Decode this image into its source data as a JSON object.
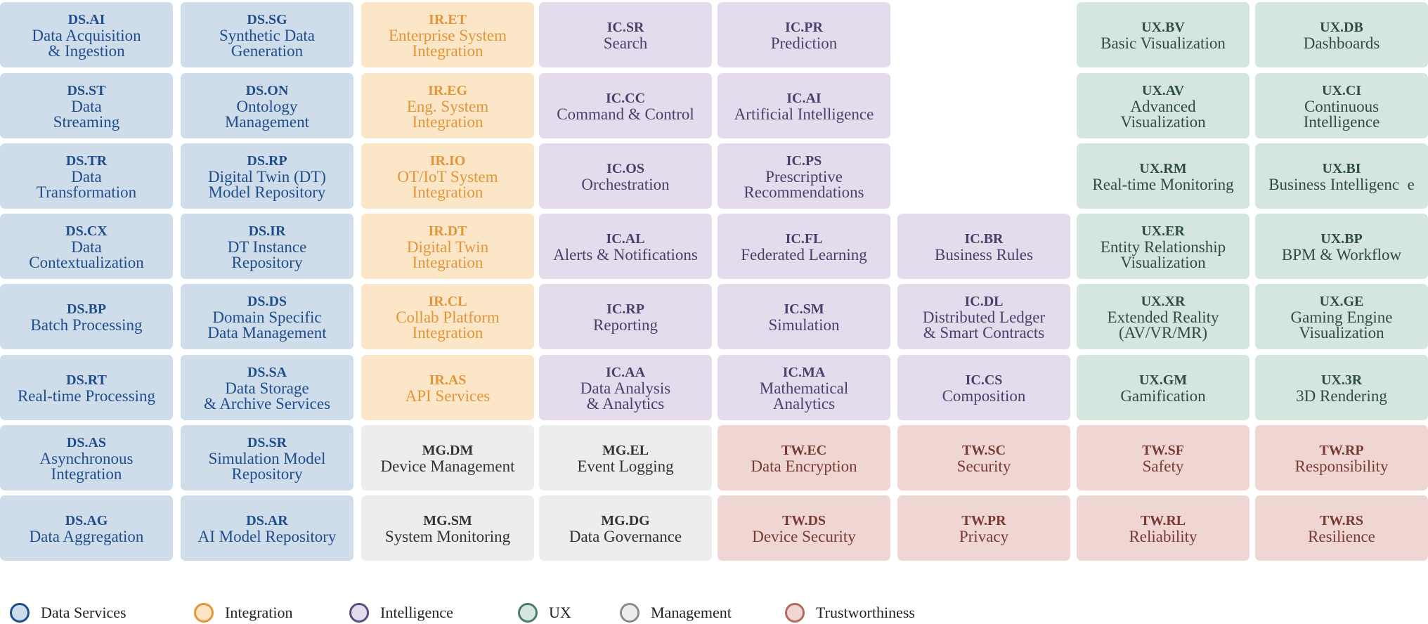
{
  "categories": {
    "ds": {
      "label": "Data Services",
      "fill": "#cfdcea",
      "stroke": "#1f4e8c",
      "text": "#1f4e8c"
    },
    "ir": {
      "label": "Integration",
      "fill": "#fbe6c7",
      "stroke": "#e3953a",
      "text": "#e3953a"
    },
    "ic": {
      "label": "Intelligence",
      "fill": "#e4dcec",
      "stroke": "#5a4d80",
      "text": "#4a3f6b"
    },
    "ux": {
      "label": "UX",
      "fill": "#d5e6df",
      "stroke": "#4f7b6c",
      "text": "#2e4d44"
    },
    "mg": {
      "label": "Management",
      "fill": "#ededed",
      "stroke": "#8c8c8c",
      "text": "#333333"
    },
    "tw": {
      "label": "Trustworthiness",
      "fill": "#f0d6d3",
      "stroke": "#b56a62",
      "text": "#7a3a34"
    }
  },
  "legend": [
    "ds",
    "ir",
    "ic",
    "ux",
    "mg",
    "tw"
  ],
  "cells": [
    {
      "code": "DS.AI",
      "name": "Data Acquisition\n& Ingestion",
      "cat": "ds",
      "col": 0,
      "row": 0
    },
    {
      "code": "DS.ST",
      "name": "Data\nStreaming",
      "cat": "ds",
      "col": 0,
      "row": 1
    },
    {
      "code": "DS.TR",
      "name": "Data\nTransformation",
      "cat": "ds",
      "col": 0,
      "row": 2
    },
    {
      "code": "DS.CX",
      "name": "Data\nContextualization",
      "cat": "ds",
      "col": 0,
      "row": 3
    },
    {
      "code": "DS.BP",
      "name": "Batch Processing",
      "cat": "ds",
      "col": 0,
      "row": 4
    },
    {
      "code": "DS.RT",
      "name": "Real-time Processing",
      "cat": "ds",
      "col": 0,
      "row": 5
    },
    {
      "code": "DS.AS",
      "name": "Asynchronous\nIntegration",
      "cat": "ds",
      "col": 0,
      "row": 6
    },
    {
      "code": "DS.AG",
      "name": "Data Aggregation",
      "cat": "ds",
      "col": 0,
      "row": 7
    },
    {
      "code": "DS.SG",
      "name": "Synthetic Data\nGeneration",
      "cat": "ds",
      "col": 1,
      "row": 0
    },
    {
      "code": "DS.ON",
      "name": "Ontology\nManagement",
      "cat": "ds",
      "col": 1,
      "row": 1
    },
    {
      "code": "DS.RP",
      "name": "Digital Twin (DT)\nModel Repository",
      "cat": "ds",
      "col": 1,
      "row": 2
    },
    {
      "code": "DS.IR",
      "name": "DT Instance\nRepository",
      "cat": "ds",
      "col": 1,
      "row": 3
    },
    {
      "code": "DS.DS",
      "name": "Domain Specific\nData Management",
      "cat": "ds",
      "col": 1,
      "row": 4
    },
    {
      "code": "DS.SA",
      "name": "Data Storage\n& Archive Services",
      "cat": "ds",
      "col": 1,
      "row": 5
    },
    {
      "code": "DS.SR",
      "name": "Simulation Model\nRepository",
      "cat": "ds",
      "col": 1,
      "row": 6
    },
    {
      "code": "DS.AR",
      "name": "AI Model Repository",
      "cat": "ds",
      "col": 1,
      "row": 7
    },
    {
      "code": "IR.ET",
      "name": "Enterprise System\nIntegration",
      "cat": "ir",
      "col": 2,
      "row": 0
    },
    {
      "code": "IR.EG",
      "name": "Eng. System\nIntegration",
      "cat": "ir",
      "col": 2,
      "row": 1
    },
    {
      "code": "IR.IO",
      "name": "OT/IoT System\nIntegration",
      "cat": "ir",
      "col": 2,
      "row": 2
    },
    {
      "code": "IR.DT",
      "name": "Digital Twin\nIntegration",
      "cat": "ir",
      "col": 2,
      "row": 3
    },
    {
      "code": "IR.CL",
      "name": "Collab Platform\nIntegration",
      "cat": "ir",
      "col": 2,
      "row": 4
    },
    {
      "code": "IR.AS",
      "name": "API Services",
      "cat": "ir",
      "col": 2,
      "row": 5
    },
    {
      "code": "MG.DM",
      "name": "Device Management",
      "cat": "mg",
      "col": 2,
      "row": 6
    },
    {
      "code": "MG.SM",
      "name": "System Monitoring",
      "cat": "mg",
      "col": 2,
      "row": 7
    },
    {
      "code": "IC.SR",
      "name": "Search",
      "cat": "ic",
      "col": 3,
      "row": 0
    },
    {
      "code": "IC.CC",
      "name": "Command & Control",
      "cat": "ic",
      "col": 3,
      "row": 1
    },
    {
      "code": "IC.OS",
      "name": "Orchestration",
      "cat": "ic",
      "col": 3,
      "row": 2
    },
    {
      "code": "IC.AL",
      "name": "Alerts & Notifications",
      "cat": "ic",
      "col": 3,
      "row": 3
    },
    {
      "code": "IC.RP",
      "name": "Reporting",
      "cat": "ic",
      "col": 3,
      "row": 4
    },
    {
      "code": "IC.AA",
      "name": "Data Analysis\n& Analytics",
      "cat": "ic",
      "col": 3,
      "row": 5
    },
    {
      "code": "MG.EL",
      "name": "Event Logging",
      "cat": "mg",
      "col": 3,
      "row": 6
    },
    {
      "code": "MG.DG",
      "name": "Data Governance",
      "cat": "mg",
      "col": 3,
      "row": 7
    },
    {
      "code": "IC.PR",
      "name": "Prediction",
      "cat": "ic",
      "col": 4,
      "row": 0
    },
    {
      "code": "IC.AI",
      "name": "Artificial Intelligence",
      "cat": "ic",
      "col": 4,
      "row": 1
    },
    {
      "code": "IC.PS",
      "name": "Prescriptive\nRecommendations",
      "cat": "ic",
      "col": 4,
      "row": 2
    },
    {
      "code": "IC.FL",
      "name": "Federated Learning",
      "cat": "ic",
      "col": 4,
      "row": 3
    },
    {
      "code": "IC.SM",
      "name": "Simulation",
      "cat": "ic",
      "col": 4,
      "row": 4
    },
    {
      "code": "IC.MA",
      "name": "Mathematical\nAnalytics",
      "cat": "ic",
      "col": 4,
      "row": 5
    },
    {
      "code": "TW.EC",
      "name": "Data Encryption",
      "cat": "tw",
      "col": 4,
      "row": 6
    },
    {
      "code": "TW.DS",
      "name": "Device Security",
      "cat": "tw",
      "col": 4,
      "row": 7
    },
    {
      "code": "IC.BR",
      "name": "Business Rules",
      "cat": "ic",
      "col": 5,
      "row": 3
    },
    {
      "code": "IC.DL",
      "name": "Distributed Ledger\n& Smart Contracts",
      "cat": "ic",
      "col": 5,
      "row": 4
    },
    {
      "code": "IC.CS",
      "name": "Composition",
      "cat": "ic",
      "col": 5,
      "row": 5
    },
    {
      "code": "TW.SC",
      "name": "Security",
      "cat": "tw",
      "col": 5,
      "row": 6
    },
    {
      "code": "TW.PR",
      "name": "Privacy",
      "cat": "tw",
      "col": 5,
      "row": 7
    },
    {
      "code": "UX.BV",
      "name": "Basic Visualization",
      "cat": "ux",
      "col": 6,
      "row": 0
    },
    {
      "code": "UX.AV",
      "name": "Advanced\nVisualization",
      "cat": "ux",
      "col": 6,
      "row": 1
    },
    {
      "code": "UX.RM",
      "name": "Real-time Monitoring",
      "cat": "ux",
      "col": 6,
      "row": 2
    },
    {
      "code": "UX.ER",
      "name": "Entity Relationship\nVisualization",
      "cat": "ux",
      "col": 6,
      "row": 3
    },
    {
      "code": "UX.XR",
      "name": "Extended Reality\n(AV/VR/MR)",
      "cat": "ux",
      "col": 6,
      "row": 4
    },
    {
      "code": "UX.GM",
      "name": "Gamification",
      "cat": "ux",
      "col": 6,
      "row": 5
    },
    {
      "code": "TW.SF",
      "name": "Safety",
      "cat": "tw",
      "col": 6,
      "row": 6
    },
    {
      "code": "TW.RL",
      "name": "Reliability",
      "cat": "tw",
      "col": 6,
      "row": 7
    },
    {
      "code": "UX.DB",
      "name": "Dashboards",
      "cat": "ux",
      "col": 7,
      "row": 0
    },
    {
      "code": "UX.CI",
      "name": "Continuous\nIntelligence",
      "cat": "ux",
      "col": 7,
      "row": 1
    },
    {
      "code": "UX.BI",
      "name": "Business Intelligenc  e",
      "cat": "ux",
      "col": 7,
      "row": 2
    },
    {
      "code": "UX.BP",
      "name": "BPM & Workflow",
      "cat": "ux",
      "col": 7,
      "row": 3
    },
    {
      "code": "UX.GE",
      "name": "Gaming Engine\nVisualization",
      "cat": "ux",
      "col": 7,
      "row": 4
    },
    {
      "code": "UX.3R",
      "name": "3D Rendering",
      "cat": "ux",
      "col": 7,
      "row": 5
    },
    {
      "code": "TW.RP",
      "name": "Responsibility",
      "cat": "tw",
      "col": 7,
      "row": 6
    },
    {
      "code": "TW.RS",
      "name": "Resilience",
      "cat": "tw",
      "col": 7,
      "row": 7
    }
  ]
}
